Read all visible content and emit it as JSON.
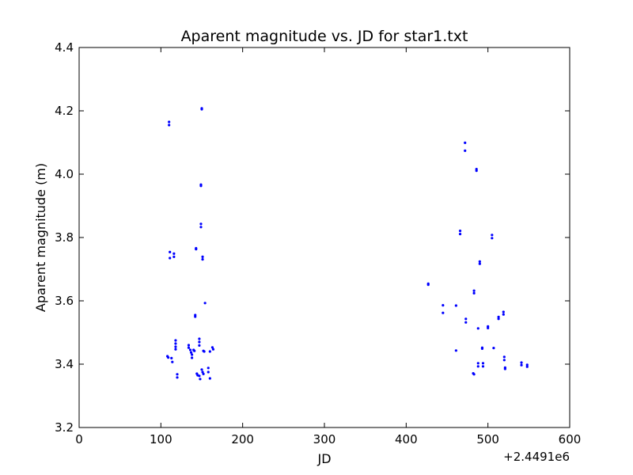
{
  "chart_data": {
    "type": "scatter",
    "title": "Aparent magnitude vs. JD for star1.txt",
    "xlabel": "JD",
    "ylabel": "Aparent magnitude (m)",
    "x_offset_label": "+2.4491e6",
    "xlim": [
      0,
      600
    ],
    "ylim": [
      3.2,
      4.4
    ],
    "x_ticks": [
      "0",
      "100",
      "200",
      "300",
      "400",
      "500",
      "600"
    ],
    "y_ticks": [
      "3.2",
      "3.4",
      "3.6",
      "3.8",
      "4.0",
      "4.2",
      "4.4"
    ],
    "grid": false,
    "marker_color": "#0000ff",
    "points": [
      [
        110,
        4.165
      ],
      [
        110,
        4.155
      ],
      [
        150,
        4.208
      ],
      [
        150,
        4.205
      ],
      [
        149,
        3.967
      ],
      [
        149,
        3.963
      ],
      [
        149,
        3.843
      ],
      [
        149,
        3.833
      ],
      [
        143,
        3.766
      ],
      [
        143,
        3.763
      ],
      [
        151,
        3.739
      ],
      [
        151,
        3.731
      ],
      [
        111,
        3.754
      ],
      [
        111,
        3.735
      ],
      [
        116,
        3.749
      ],
      [
        116,
        3.739
      ],
      [
        154,
        3.593
      ],
      [
        142,
        3.555
      ],
      [
        142,
        3.55
      ],
      [
        118,
        3.475
      ],
      [
        118,
        3.465
      ],
      [
        118,
        3.455
      ],
      [
        118,
        3.447
      ],
      [
        134,
        3.46
      ],
      [
        134,
        3.452
      ],
      [
        136,
        3.445
      ],
      [
        137,
        3.437
      ],
      [
        138,
        3.43
      ],
      [
        138,
        3.42
      ],
      [
        140,
        3.445
      ],
      [
        141,
        3.442
      ],
      [
        147,
        3.48
      ],
      [
        147,
        3.47
      ],
      [
        147,
        3.459
      ],
      [
        152,
        3.442
      ],
      [
        153,
        3.44
      ],
      [
        160,
        3.44
      ],
      [
        163,
        3.453
      ],
      [
        164,
        3.447
      ],
      [
        108,
        3.425
      ],
      [
        109,
        3.421
      ],
      [
        113,
        3.419
      ],
      [
        114,
        3.407
      ],
      [
        120,
        3.368
      ],
      [
        120,
        3.358
      ],
      [
        144,
        3.37
      ],
      [
        145,
        3.365
      ],
      [
        147,
        3.363
      ],
      [
        148,
        3.353
      ],
      [
        150,
        3.383
      ],
      [
        151,
        3.375
      ],
      [
        152,
        3.369
      ],
      [
        158,
        3.388
      ],
      [
        158,
        3.375
      ],
      [
        160,
        3.355
      ],
      [
        427,
        3.654
      ],
      [
        427,
        3.651
      ],
      [
        445,
        3.586
      ],
      [
        445,
        3.562
      ],
      [
        461,
        3.585
      ],
      [
        461,
        3.443
      ],
      [
        466,
        3.821
      ],
      [
        466,
        3.811
      ],
      [
        472,
        4.099
      ],
      [
        472,
        4.074
      ],
      [
        473,
        3.543
      ],
      [
        473,
        3.532
      ],
      [
        483,
        3.632
      ],
      [
        483,
        3.624
      ],
      [
        482,
        3.371
      ],
      [
        483,
        3.368
      ],
      [
        486,
        4.016
      ],
      [
        486,
        4.011
      ],
      [
        488,
        3.513
      ],
      [
        488,
        3.403
      ],
      [
        488,
        3.393
      ],
      [
        490,
        3.724
      ],
      [
        490,
        3.717
      ],
      [
        493,
        3.452
      ],
      [
        493,
        3.449
      ],
      [
        494,
        3.403
      ],
      [
        494,
        3.393
      ],
      [
        500,
        3.519
      ],
      [
        500,
        3.514
      ],
      [
        505,
        3.808
      ],
      [
        505,
        3.798
      ],
      [
        507,
        3.451
      ],
      [
        513,
        3.549
      ],
      [
        513,
        3.543
      ],
      [
        519,
        3.565
      ],
      [
        519,
        3.557
      ],
      [
        520,
        3.423
      ],
      [
        520,
        3.413
      ],
      [
        521,
        3.389
      ],
      [
        521,
        3.385
      ],
      [
        541,
        3.405
      ],
      [
        541,
        3.397
      ],
      [
        548,
        3.398
      ],
      [
        548,
        3.392
      ]
    ]
  }
}
